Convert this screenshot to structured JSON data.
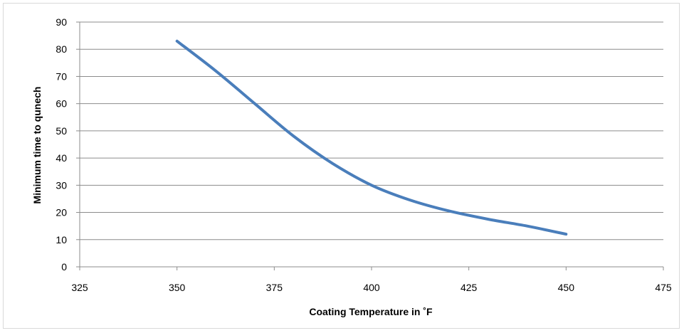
{
  "chart_data": {
    "type": "line",
    "title": "",
    "xlabel": "Coating Temperature in ˚F",
    "ylabel": "Minimum time to qunech",
    "xlim": [
      325,
      475
    ],
    "ylim": [
      0,
      90
    ],
    "x_ticks": [
      "325",
      "350",
      "375",
      "400",
      "425",
      "450",
      "475"
    ],
    "y_ticks": [
      "0",
      "10",
      "20",
      "30",
      "40",
      "50",
      "60",
      "70",
      "80",
      "90"
    ],
    "grid": "horizontal",
    "legend": "none",
    "series": [
      {
        "color": "#4a7ebb",
        "x": [
          350,
          360,
          370,
          380,
          390,
          400,
          410,
          420,
          430,
          440,
          450
        ],
        "y": [
          83,
          72,
          60,
          48,
          38,
          30,
          24.5,
          20.5,
          17.5,
          15,
          12
        ]
      }
    ]
  }
}
